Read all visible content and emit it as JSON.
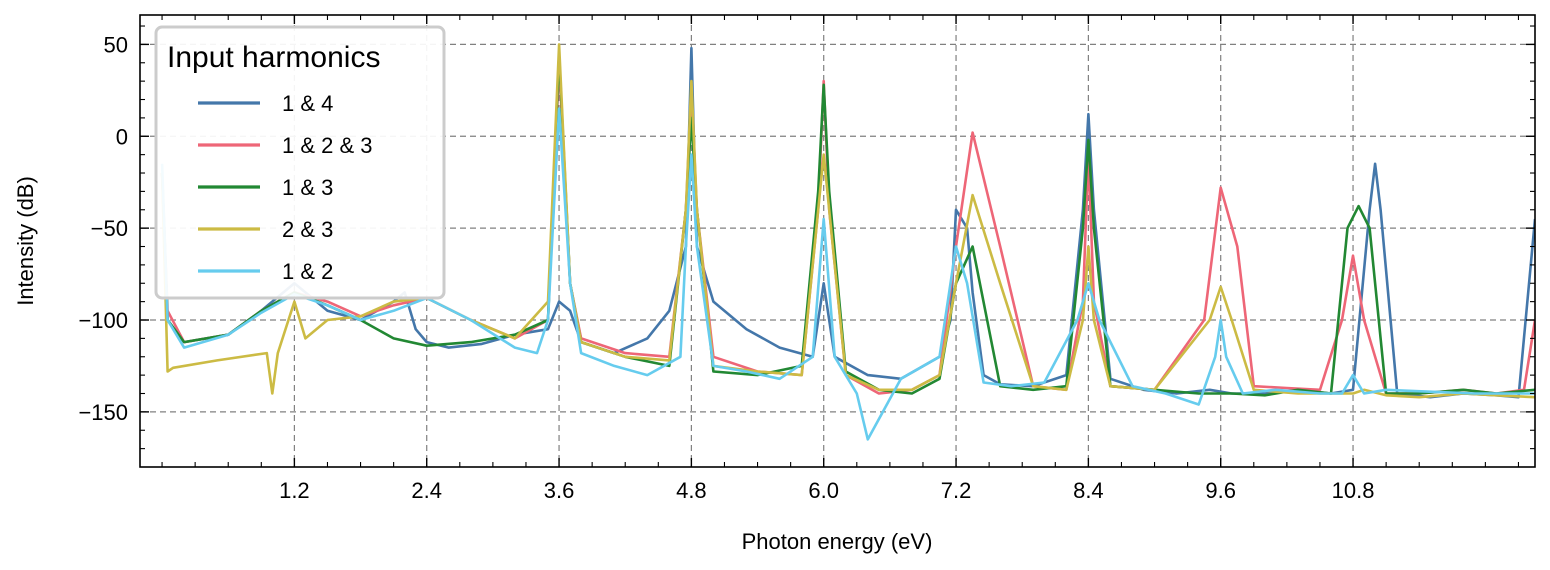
{
  "chart_data": {
    "type": "line",
    "title": "",
    "xlabel": "Photon energy (eV)",
    "ylabel": "Intensity (dB)",
    "xlim": [
      -0.2,
      12.45
    ],
    "ylim": [
      -180,
      66
    ],
    "xticks": [
      1.2,
      2.4,
      3.6,
      4.8,
      6.0,
      7.2,
      8.4,
      9.6,
      10.8
    ],
    "xtick_labels": [
      "1.2",
      "2.4",
      "3.6",
      "4.8",
      "6.0",
      "7.2",
      "8.4",
      "9.6",
      "10.8"
    ],
    "yticks": [
      50,
      0,
      -50,
      -100,
      -150
    ],
    "ytick_labels": [
      "50",
      "0",
      "−50",
      "−100",
      "−150"
    ],
    "grid": true,
    "legend": {
      "title": "Input harmonics",
      "position": "top-left"
    },
    "series": [
      {
        "name": "1 & 4",
        "color": "#4477aa",
        "x": [
          0.0,
          0.05,
          0.2,
          0.6,
          0.9,
          1.1,
          1.2,
          1.3,
          1.5,
          1.8,
          2.1,
          2.2,
          2.25,
          2.3,
          2.4,
          2.6,
          2.9,
          3.2,
          3.5,
          3.6,
          3.7,
          3.8,
          4.1,
          4.4,
          4.6,
          4.75,
          4.8,
          4.85,
          5.0,
          5.3,
          5.6,
          5.9,
          6.0,
          6.1,
          6.4,
          6.7,
          7.05,
          7.15,
          7.2,
          7.3,
          7.35,
          7.45,
          7.6,
          7.9,
          8.2,
          8.35,
          8.4,
          8.45,
          8.6,
          8.9,
          9.2,
          9.5,
          9.7,
          10.0,
          10.3,
          10.6,
          10.8,
          10.95,
          11.0,
          11.05,
          11.2,
          11.5,
          11.8,
          12.1,
          12.3,
          12.45
        ],
        "y": [
          -20,
          -100,
          -112,
          -108,
          -95,
          -85,
          -80,
          -85,
          -95,
          -100,
          -90,
          -85,
          -95,
          -105,
          -112,
          -115,
          -113,
          -108,
          -105,
          -90,
          -95,
          -112,
          -118,
          -110,
          -95,
          -60,
          48,
          -60,
          -90,
          -105,
          -115,
          -120,
          -80,
          -120,
          -130,
          -132,
          -120,
          -100,
          -40,
          -50,
          -85,
          -130,
          -135,
          -136,
          -130,
          -40,
          12,
          -40,
          -132,
          -138,
          -140,
          -138,
          -140,
          -140,
          -138,
          -140,
          -138,
          -40,
          -15,
          -40,
          -140,
          -142,
          -140,
          -141,
          -142,
          -45
        ]
      },
      {
        "name": "1 & 2 & 3",
        "color": "#ee6677",
        "x": [
          0.0,
          0.05,
          0.2,
          0.6,
          0.9,
          1.2,
          1.5,
          1.8,
          2.1,
          2.4,
          2.8,
          3.2,
          3.5,
          3.6,
          3.7,
          3.8,
          4.2,
          4.6,
          4.75,
          4.8,
          4.85,
          5.0,
          5.4,
          5.8,
          5.95,
          6.0,
          6.05,
          6.2,
          6.5,
          6.8,
          7.05,
          7.2,
          7.35,
          7.6,
          7.9,
          8.2,
          8.35,
          8.4,
          8.45,
          8.6,
          9.0,
          9.45,
          9.6,
          9.75,
          9.9,
          10.2,
          10.5,
          10.7,
          10.8,
          10.9,
          11.1,
          11.4,
          11.8,
          12.1,
          12.35,
          12.45
        ],
        "y": [
          -20,
          -95,
          -112,
          -108,
          -95,
          -85,
          -90,
          -98,
          -92,
          -88,
          -100,
          -110,
          -100,
          40,
          -80,
          -110,
          -118,
          -120,
          -40,
          25,
          -40,
          -120,
          -128,
          -130,
          -40,
          30,
          -40,
          -130,
          -140,
          -138,
          -130,
          -60,
          2,
          -60,
          -136,
          -138,
          -90,
          -10,
          -90,
          -136,
          -138,
          -100,
          -28,
          -60,
          -136,
          -137,
          -138,
          -100,
          -65,
          -100,
          -140,
          -140,
          -138,
          -140,
          -138,
          -100
        ]
      },
      {
        "name": "1 & 3",
        "color": "#228833",
        "x": [
          0.0,
          0.05,
          0.2,
          0.6,
          0.9,
          1.2,
          1.5,
          1.8,
          2.1,
          2.4,
          2.8,
          3.2,
          3.5,
          3.6,
          3.7,
          3.8,
          4.2,
          4.6,
          4.75,
          4.8,
          4.85,
          5.0,
          5.4,
          5.8,
          5.95,
          6.0,
          6.05,
          6.2,
          6.5,
          6.8,
          7.05,
          7.2,
          7.35,
          7.6,
          7.9,
          8.2,
          8.35,
          8.4,
          8.45,
          8.6,
          9.0,
          9.4,
          9.7,
          10.0,
          10.3,
          10.6,
          10.75,
          10.85,
          10.95,
          11.1,
          11.4,
          11.8,
          12.1,
          12.45
        ],
        "y": [
          -20,
          -100,
          -112,
          -108,
          -95,
          -85,
          -92,
          -100,
          -110,
          -114,
          -112,
          -108,
          -100,
          45,
          -80,
          -112,
          -120,
          -125,
          -40,
          10,
          -40,
          -128,
          -130,
          -125,
          -30,
          28,
          -30,
          -128,
          -138,
          -140,
          -132,
          -80,
          -60,
          -136,
          -138,
          -136,
          -50,
          -2,
          -50,
          -136,
          -138,
          -140,
          -140,
          -141,
          -138,
          -140,
          -50,
          -38,
          -50,
          -140,
          -140,
          -138,
          -140,
          -138
        ]
      },
      {
        "name": "2 & 3",
        "color": "#ccbb44",
        "x": [
          0.0,
          0.05,
          0.1,
          0.5,
          0.95,
          1.0,
          1.05,
          1.2,
          1.3,
          1.5,
          1.8,
          2.1,
          2.4,
          2.8,
          3.2,
          3.5,
          3.6,
          3.7,
          3.8,
          4.2,
          4.6,
          4.75,
          4.8,
          4.85,
          5.0,
          5.4,
          5.8,
          5.95,
          6.0,
          6.05,
          6.2,
          6.5,
          6.8,
          7.05,
          7.2,
          7.35,
          7.6,
          7.9,
          8.2,
          8.35,
          8.4,
          8.45,
          8.6,
          9.0,
          9.5,
          9.6,
          9.7,
          9.9,
          10.3,
          10.7,
          10.8,
          10.9,
          11.1,
          11.4,
          11.8,
          12.1,
          12.45
        ],
        "y": [
          -20,
          -128,
          -126,
          -122,
          -118,
          -140,
          -118,
          -90,
          -110,
          -100,
          -98,
          -90,
          -88,
          -100,
          -110,
          -90,
          50,
          -80,
          -112,
          -120,
          -122,
          -40,
          30,
          -40,
          -125,
          -128,
          -130,
          -40,
          -10,
          -40,
          -130,
          -138,
          -138,
          -130,
          -80,
          -32,
          -80,
          -136,
          -138,
          -100,
          -60,
          -100,
          -136,
          -138,
          -100,
          -82,
          -100,
          -138,
          -140,
          -140,
          -140,
          -138,
          -141,
          -142,
          -140,
          -141,
          -142
        ]
      },
      {
        "name": "1 & 2",
        "color": "#66ccee",
        "x": [
          0.0,
          0.05,
          0.2,
          0.6,
          0.9,
          1.2,
          1.5,
          1.8,
          2.1,
          2.4,
          2.8,
          3.2,
          3.4,
          3.5,
          3.6,
          3.7,
          3.8,
          4.1,
          4.4,
          4.7,
          4.75,
          4.8,
          4.85,
          5.0,
          5.3,
          5.6,
          5.9,
          6.0,
          6.1,
          6.3,
          6.4,
          6.7,
          7.05,
          7.15,
          7.2,
          7.3,
          7.45,
          7.7,
          8.0,
          8.3,
          8.4,
          8.5,
          8.8,
          9.1,
          9.4,
          9.55,
          9.6,
          9.65,
          9.8,
          10.1,
          10.5,
          10.7,
          10.8,
          10.9,
          11.1,
          11.5,
          11.9,
          12.45
        ],
        "y": [
          -15,
          -100,
          -115,
          -108,
          -96,
          -86,
          -92,
          -100,
          -95,
          -88,
          -100,
          -115,
          -118,
          -100,
          15,
          -80,
          -118,
          -125,
          -130,
          -120,
          -60,
          -10,
          -60,
          -125,
          -128,
          -132,
          -120,
          -45,
          -120,
          -140,
          -165,
          -132,
          -120,
          -80,
          -60,
          -80,
          -134,
          -136,
          -134,
          -100,
          -80,
          -100,
          -136,
          -140,
          -146,
          -120,
          -100,
          -120,
          -140,
          -138,
          -140,
          -140,
          -130,
          -140,
          -138,
          -139,
          -140,
          -140
        ]
      }
    ]
  }
}
